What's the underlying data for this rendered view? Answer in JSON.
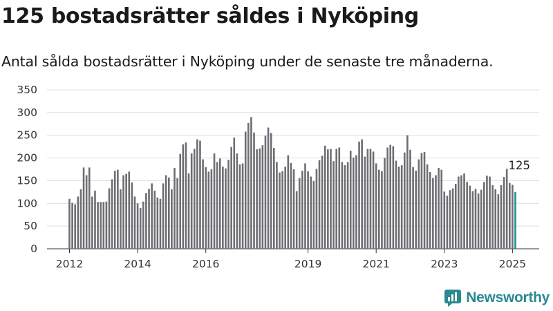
{
  "header": {
    "title": "125 bostadsrätter såldes i Nyköping",
    "subtitle": "Antal sålda bostadsrätter i Nyköping under de senaste tre månaderna."
  },
  "brand": {
    "name": "Newsworthy",
    "logo_icon": "newsworthy-logo-icon",
    "color": "#2a8a8f"
  },
  "colors": {
    "bar": "#6e6d74",
    "highlight": "#17968f",
    "grid": "#dddddd"
  },
  "chart_data": {
    "type": "bar",
    "title": "",
    "xlabel": "",
    "ylabel": "",
    "ylim": [
      0,
      350
    ],
    "yticks": [
      0,
      50,
      100,
      150,
      200,
      250,
      300,
      350
    ],
    "xticks": [
      2012,
      2014,
      2016,
      2019,
      2021,
      2023,
      2025
    ],
    "grid": true,
    "annotation": {
      "text": "125",
      "target": "last"
    },
    "values": [
      110,
      101,
      98,
      115,
      131,
      179,
      162,
      179,
      115,
      128,
      103,
      103,
      103,
      104,
      133,
      153,
      172,
      174,
      131,
      162,
      165,
      170,
      146,
      115,
      100,
      90,
      104,
      123,
      132,
      144,
      128,
      113,
      110,
      144,
      162,
      157,
      131,
      178,
      156,
      209,
      230,
      234,
      166,
      210,
      220,
      241,
      238,
      197,
      180,
      170,
      175,
      210,
      191,
      199,
      181,
      177,
      196,
      224,
      245,
      210,
      186,
      188,
      258,
      277,
      290,
      256,
      219,
      221,
      228,
      249,
      267,
      255,
      222,
      191,
      168,
      171,
      181,
      206,
      189,
      175,
      127,
      156,
      172,
      188,
      171,
      159,
      149,
      176,
      195,
      205,
      227,
      219,
      220,
      193,
      220,
      223,
      191,
      184,
      191,
      216,
      201,
      206,
      236,
      241,
      203,
      220,
      220,
      214,
      188,
      174,
      171,
      200,
      223,
      229,
      226,
      194,
      181,
      184,
      212,
      250,
      218,
      180,
      172,
      197,
      211,
      213,
      186,
      169,
      156,
      162,
      178,
      174,
      126,
      117,
      129,
      133,
      143,
      159,
      162,
      166,
      147,
      139,
      127,
      132,
      122,
      130,
      147,
      161,
      159,
      140,
      131,
      120,
      140,
      158,
      176,
      145,
      141,
      125
    ],
    "highlight_last": true
  }
}
